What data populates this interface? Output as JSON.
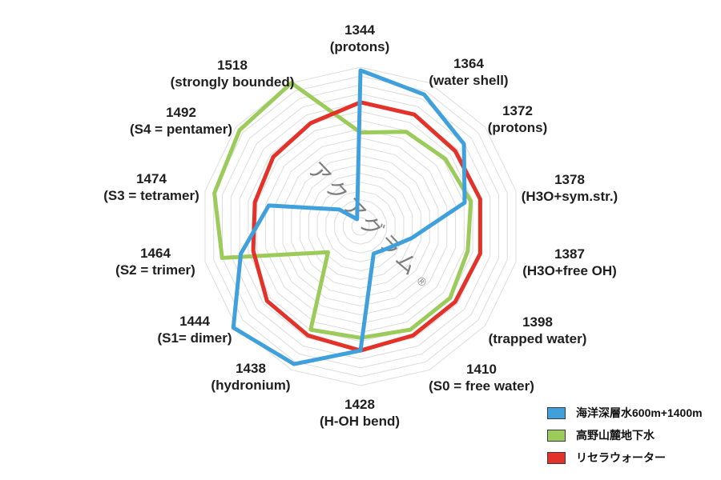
{
  "chart_data": {
    "type": "radar",
    "watermark": "アクアグラム",
    "watermark_reg": "®",
    "rings": 18,
    "rmax": 100,
    "grid_color": "#dcdcdc",
    "legend_position": "bottom-right",
    "axes": [
      {
        "wavenumber": "1344",
        "label": "(protons)"
      },
      {
        "wavenumber": "1364",
        "label": "(water shell)"
      },
      {
        "wavenumber": "1372",
        "label": "(protons)"
      },
      {
        "wavenumber": "1378",
        "label": "(H3O+sym.str.)"
      },
      {
        "wavenumber": "1387",
        "label": "(H3O+free OH)"
      },
      {
        "wavenumber": "1398",
        "label": "(trapped water)"
      },
      {
        "wavenumber": "1410",
        "label": "(S0 = free water)"
      },
      {
        "wavenumber": "1428",
        "label": "(H-OH bend)"
      },
      {
        "wavenumber": "1438",
        "label": "(hydronium)"
      },
      {
        "wavenumber": "1444",
        "label": "(S1= dimer)"
      },
      {
        "wavenumber": "1464",
        "label": "(S2 = trimer)"
      },
      {
        "wavenumber": "1474",
        "label": "(S3 = tetramer)"
      },
      {
        "wavenumber": "1492",
        "label": "(S4 = pentamer)"
      },
      {
        "wavenumber": "1518",
        "label": "(strongly bounded)"
      }
    ],
    "series": [
      {
        "name": "海洋深層水600m+1400m",
        "color": "#3FA0DC",
        "values": [
          98,
          92,
          83,
          67,
          33,
          22,
          19,
          78,
          96,
          102,
          77,
          59,
          17,
          5
        ]
      },
      {
        "name": "高野山麓地下水",
        "color": "#9CCB5B",
        "values": [
          59,
          66,
          68,
          71,
          69,
          72,
          72,
          70,
          72,
          26,
          89,
          94,
          97,
          100
        ]
      },
      {
        "name": "リセラウォーター",
        "color": "#E2322A",
        "values": [
          78,
          78,
          76,
          77,
          77,
          76,
          76,
          78,
          76,
          75,
          69,
          68,
          70,
          72
        ]
      }
    ]
  }
}
